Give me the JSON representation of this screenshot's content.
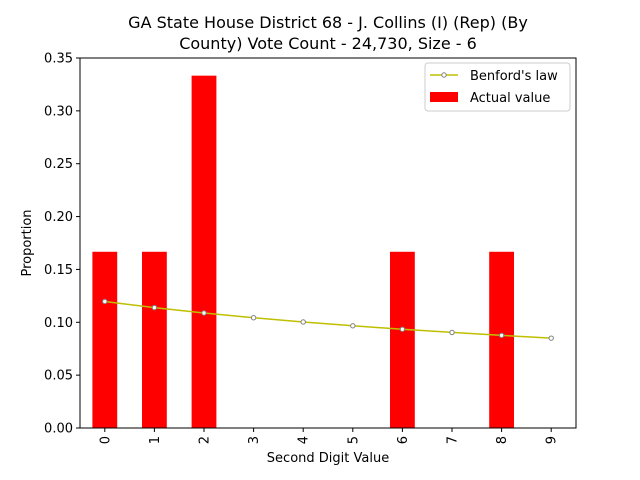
{
  "chart_data": {
    "type": "bar",
    "title_lines": [
      "GA State House District 68 - J. Collins (I) (Rep) (By",
      "County) Vote Count - 24,730, Size - 6"
    ],
    "xlabel": "Second Digit Value",
    "ylabel": "Proportion",
    "categories": [
      "0",
      "1",
      "2",
      "3",
      "4",
      "5",
      "6",
      "7",
      "8",
      "9"
    ],
    "ylim": [
      0,
      0.35
    ],
    "yticks": [
      "0.00",
      "0.05",
      "0.10",
      "0.15",
      "0.20",
      "0.25",
      "0.30",
      "0.35"
    ],
    "series": [
      {
        "name": "Actual value",
        "kind": "bar",
        "color": "#ff0000",
        "values": [
          0.1667,
          0.1667,
          0.3333,
          0,
          0,
          0,
          0.1667,
          0,
          0.1667,
          0
        ]
      },
      {
        "name": "Benford's law",
        "kind": "line",
        "color": "#bfbf00",
        "marker_edge": "#808080",
        "values": [
          0.1197,
          0.1139,
          0.1088,
          0.1043,
          0.1003,
          0.0967,
          0.0934,
          0.0904,
          0.0876,
          0.085
        ]
      }
    ],
    "legend": {
      "position": "top-right",
      "entries": [
        "Benford's law",
        "Actual value"
      ]
    },
    "grid": false
  }
}
